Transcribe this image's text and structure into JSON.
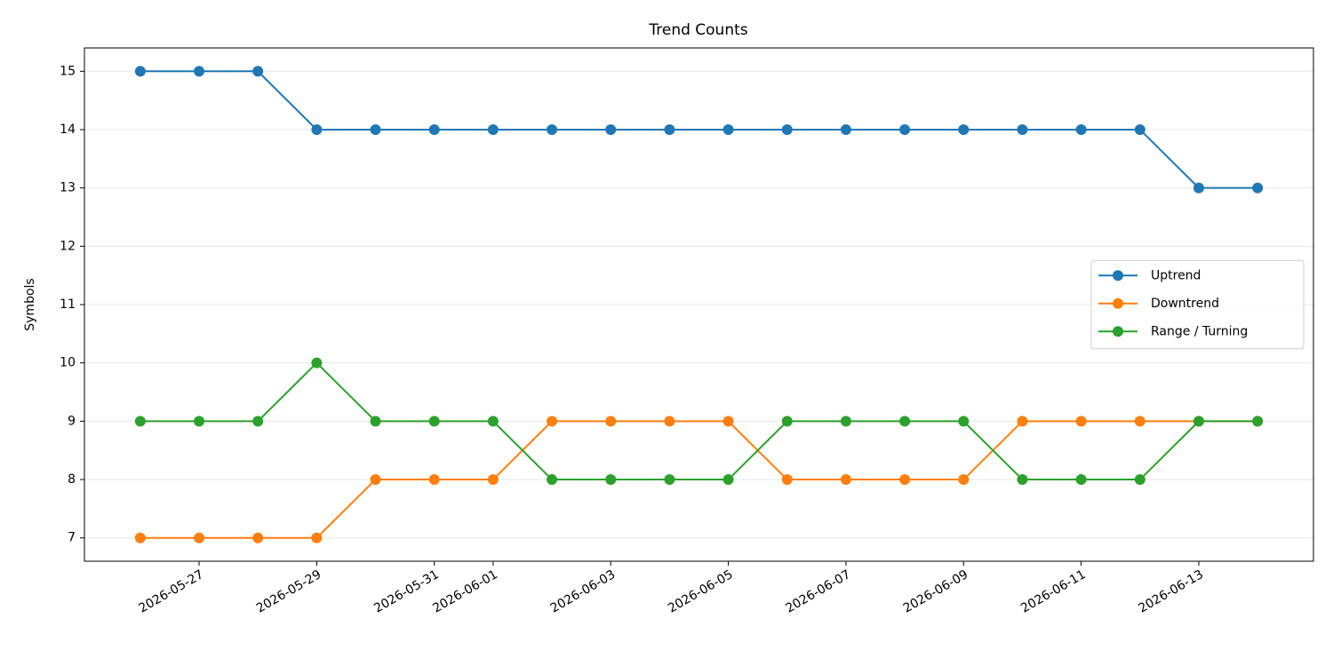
{
  "chart_data": {
    "type": "line",
    "title": "Trend Counts",
    "y_label": "Symbols",
    "x": [
      "2026-05-26",
      "2026-05-27",
      "2026-05-28",
      "2026-05-29",
      "2026-05-30",
      "2026-05-31",
      "2026-06-01",
      "2026-06-02",
      "2026-06-03",
      "2026-06-04",
      "2026-06-05",
      "2026-06-06",
      "2026-06-07",
      "2026-06-08",
      "2026-06-09",
      "2026-06-10",
      "2026-06-11",
      "2026-06-12",
      "2026-06-13",
      "2026-06-14"
    ],
    "series": [
      {
        "name": "Uptrend",
        "color": "#1f77b4",
        "values": [
          15,
          15,
          15,
          14,
          14,
          14,
          14,
          14,
          14,
          14,
          14,
          14,
          14,
          14,
          14,
          14,
          14,
          14,
          13,
          13
        ]
      },
      {
        "name": "Downtrend",
        "color": "#ff7f0e",
        "values": [
          7,
          7,
          7,
          7,
          8,
          8,
          8,
          9,
          9,
          9,
          9,
          8,
          8,
          8,
          8,
          9,
          9,
          9,
          9,
          9
        ]
      },
      {
        "name": "Range / Turning",
        "color": "#2ca02c",
        "values": [
          9,
          9,
          9,
          10,
          9,
          9,
          9,
          8,
          8,
          8,
          8,
          9,
          9,
          9,
          9,
          8,
          8,
          8,
          9,
          9
        ]
      }
    ],
    "xlim": [
      "2026-05-25T01:12:00Z",
      "2026-06-14T22:48:00Z"
    ],
    "xticks": [
      "2026-05-27",
      "2026-05-29",
      "2026-05-31",
      "2026-06-01",
      "2026-06-03",
      "2026-06-05",
      "2026-06-07",
      "2026-06-09",
      "2026-06-11",
      "2026-06-13"
    ],
    "ylim": [
      6.6,
      15.4
    ],
    "yticks": [
      7,
      8,
      9,
      10,
      11,
      12,
      13,
      14,
      15
    ],
    "grid": "y",
    "legend": "right"
  }
}
